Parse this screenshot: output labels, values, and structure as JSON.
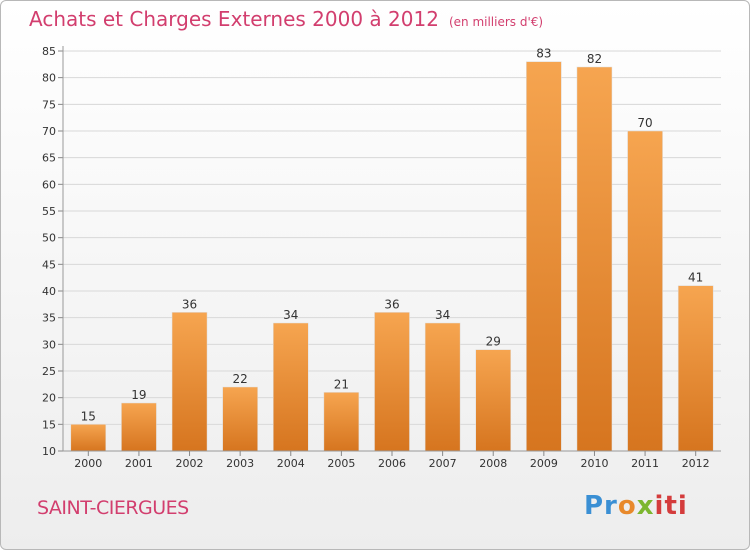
{
  "header": {
    "title": "Achats et Charges Externes 2000 à 2012",
    "unit": "(en milliers d'€)"
  },
  "commune": "SAINT-CIERGUES",
  "brand": {
    "p1": "Pr",
    "p2": "o",
    "p3": "x",
    "p4": "iti"
  },
  "colors": {
    "bar_top": "#f6a550",
    "bar_bottom": "#d6751f",
    "title": "#d23e6e"
  },
  "chart_data": {
    "type": "bar",
    "categories": [
      "2000",
      "2001",
      "2002",
      "2003",
      "2004",
      "2005",
      "2006",
      "2007",
      "2008",
      "2009",
      "2010",
      "2011",
      "2012"
    ],
    "values": [
      15,
      19,
      36,
      22,
      34,
      21,
      36,
      34,
      29,
      83,
      82,
      70,
      41
    ],
    "title": "Achats et Charges Externes 2000 à 2012",
    "xlabel": "",
    "ylabel": "",
    "ylim": [
      10,
      85
    ],
    "yticks": [
      10,
      15,
      20,
      25,
      30,
      35,
      40,
      45,
      50,
      55,
      60,
      65,
      70,
      75,
      80,
      85
    ],
    "grid": true
  }
}
